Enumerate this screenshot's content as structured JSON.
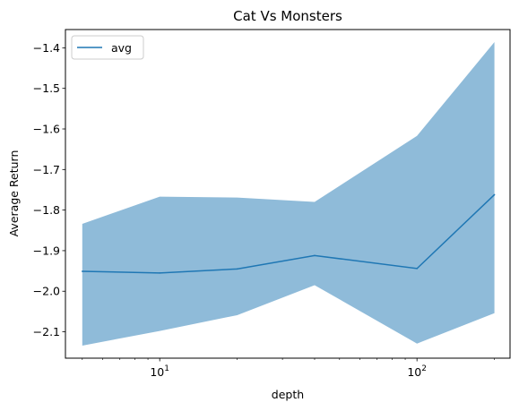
{
  "chart_data": {
    "type": "line",
    "title": "Cat Vs Monsters",
    "xlabel": "depth",
    "ylabel": "Average Return",
    "xscale": "log",
    "xlim": [
      4.3,
      230
    ],
    "ylim": [
      -2.165,
      -1.355
    ],
    "grid": false,
    "legend_position": "top-left",
    "x": [
      5,
      10,
      20,
      40,
      100,
      200
    ],
    "series": [
      {
        "name": "avg",
        "values": [
          -1.951,
          -1.955,
          -1.945,
          -1.912,
          -1.944,
          -1.762
        ],
        "lower": [
          -2.134,
          -2.098,
          -2.059,
          -1.985,
          -2.129,
          -2.054
        ],
        "upper": [
          -1.834,
          -1.767,
          -1.769,
          -1.78,
          -1.617,
          -1.386
        ],
        "line_color": "#1f77b4",
        "band_color": "#8fbbd9"
      }
    ],
    "y_ticks": [
      {
        "value": -2.1,
        "label": "−2.1"
      },
      {
        "value": -2.0,
        "label": "−2.0"
      },
      {
        "value": -1.9,
        "label": "−1.9"
      },
      {
        "value": -1.8,
        "label": "−1.8"
      },
      {
        "value": -1.7,
        "label": "−1.7"
      },
      {
        "value": -1.6,
        "label": "−1.6"
      },
      {
        "value": -1.5,
        "label": "−1.5"
      },
      {
        "value": -1.4,
        "label": "−1.4"
      }
    ],
    "x_major_ticks": [
      {
        "value": 10,
        "base": "10",
        "exp": "1"
      },
      {
        "value": 100,
        "base": "10",
        "exp": "2"
      }
    ],
    "x_minor_ticks": [
      5,
      6,
      7,
      8,
      9,
      20,
      30,
      40,
      50,
      60,
      70,
      80,
      90,
      200
    ]
  }
}
